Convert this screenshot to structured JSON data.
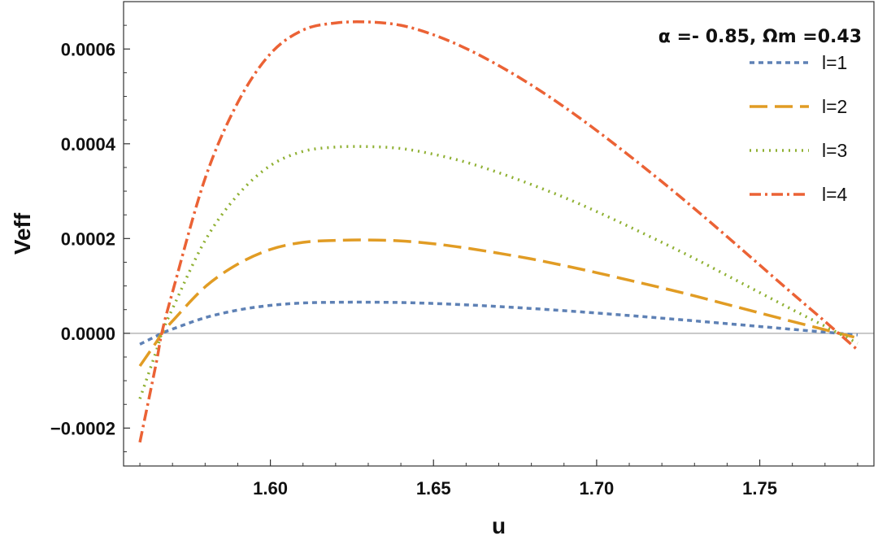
{
  "chart_data": {
    "type": "line",
    "title": "α =- 0.85, Ωm =0.43",
    "xlabel": "u",
    "ylabel": "Veff",
    "xlim": [
      1.555,
      1.785
    ],
    "ylim": [
      -0.00028,
      0.0007
    ],
    "x_ticks": [
      "1.60",
      "1.65",
      "1.70",
      "1.75"
    ],
    "x_tick_values": [
      1.6,
      1.65,
      1.7,
      1.75
    ],
    "y_ticks": [
      "-0.0002",
      "0.0000",
      "0.0002",
      "0.0004",
      "0.0006"
    ],
    "y_tick_values": [
      -0.0002,
      0.0,
      0.0002,
      0.0004,
      0.0006
    ],
    "zero_line": true,
    "legend_position": "top-right",
    "x": [
      1.56,
      1.565,
      1.5667,
      1.57,
      1.58,
      1.59,
      1.6,
      1.61,
      1.62,
      1.63,
      1.64,
      1.65,
      1.66,
      1.67,
      1.68,
      1.69,
      1.7,
      1.71,
      1.72,
      1.73,
      1.74,
      1.75,
      1.76,
      1.77,
      1.78
    ],
    "series": [
      {
        "name": "l=1",
        "color": "#5E81B5",
        "dash": "6,5",
        "width": 3.5,
        "values": [
          -2.3e-05,
          -6e-06,
          0.0,
          9e-06,
          3.3e-05,
          4.9e-05,
          5.9e-05,
          6.4e-05,
          6.55e-05,
          6.57e-05,
          6.5e-05,
          6.3e-05,
          6.01e-05,
          5.65e-05,
          5.24e-05,
          4.78e-05,
          4.28e-05,
          3.75e-05,
          3.2e-05,
          2.63e-05,
          2.04e-05,
          1.44e-05,
          8.4e-06,
          2.5e-06,
          -3.5e-06
        ]
      },
      {
        "name": "l=2",
        "color": "#E19C24",
        "dash": "22,9",
        "width": 3.5,
        "values": [
          -6.9e-05,
          -1.9e-05,
          0.0,
          2.6e-05,
          9.8e-05,
          0.000146,
          0.000177,
          0.000192,
          0.000196,
          0.000197,
          0.000195,
          0.000189,
          0.00018,
          0.000169,
          0.000157,
          0.000143,
          0.000128,
          0.000112,
          9.6e-05,
          7.9e-05,
          6.1e-05,
          4.3e-05,
          2.5e-05,
          7.5e-06,
          -1e-05
        ]
      },
      {
        "name": "l=3",
        "color": "#8FB032",
        "dash": "2,6",
        "width": 3.5,
        "values": [
          -0.000138,
          -3.8e-05,
          0.0,
          5.2e-05,
          0.000196,
          0.000292,
          0.000354,
          0.000384,
          0.000393,
          0.000394,
          0.00039,
          0.000378,
          0.000361,
          0.000339,
          0.000314,
          0.000287,
          0.000257,
          0.000225,
          0.000192,
          0.000158,
          0.000122,
          8.6e-05,
          5e-05,
          1.5e-05,
          -2.1e-05
        ]
      },
      {
        "name": "l=4",
        "color": "#EB6235",
        "dash": "14,5,3,5",
        "width": 3.5,
        "values": [
          -0.00023,
          -6.3e-05,
          0.0,
          8.7e-05,
          0.000327,
          0.000487,
          0.00059,
          0.00064,
          0.000655,
          0.000657,
          0.00065,
          0.00063,
          0.000601,
          0.000565,
          0.000524,
          0.000478,
          0.000428,
          0.000375,
          0.00032,
          0.000263,
          0.000204,
          0.000144,
          8.4e-05,
          2.5e-05,
          -3.5e-05
        ]
      }
    ]
  }
}
